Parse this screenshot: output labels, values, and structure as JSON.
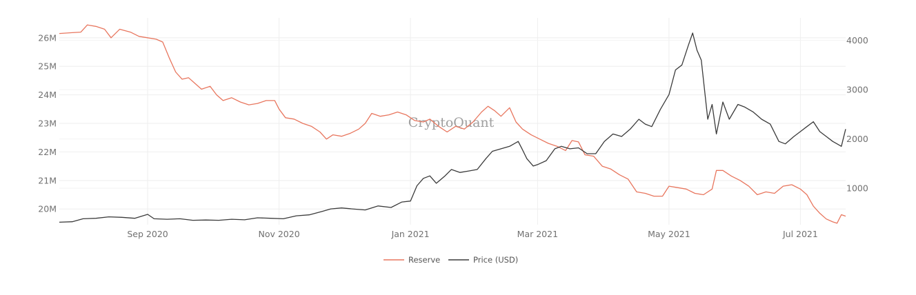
{
  "chart_data": {
    "type": "line",
    "watermark": "CryptoQuant",
    "x_tick_labels": [
      "Sep 2020",
      "Nov 2020",
      "Jan 2021",
      "Mar 2021",
      "May 2021",
      "Jul 2021"
    ],
    "x_tick_dates": [
      "2020-09-01",
      "2020-11-01",
      "2021-01-01",
      "2021-03-01",
      "2021-05-01",
      "2021-07-01"
    ],
    "x_range": [
      "2020-07-22",
      "2021-07-22"
    ],
    "y_left": {
      "tick_labels": [
        "20M",
        "21M",
        "22M",
        "23M",
        "24M",
        "25M",
        "26M"
      ],
      "tick_values": [
        20000000,
        21000000,
        22000000,
        23000000,
        24000000,
        25000000,
        26000000
      ],
      "range": [
        19450000,
        26600000
      ]
    },
    "y_right": {
      "tick_labels": [
        "1000",
        "2000",
        "3000",
        "4000"
      ],
      "tick_values": [
        1000,
        2000,
        3000,
        4000
      ],
      "range": [
        260,
        4400
      ]
    },
    "grid": true,
    "legend_position": "bottom-center",
    "series": [
      {
        "name": "Reserve",
        "axis": "left",
        "color": "#e8765e",
        "points": [
          [
            "2020-07-22",
            26150000
          ],
          [
            "2020-07-28",
            26180000
          ],
          [
            "2020-08-01",
            26200000
          ],
          [
            "2020-08-04",
            26450000
          ],
          [
            "2020-08-08",
            26400000
          ],
          [
            "2020-08-12",
            26300000
          ],
          [
            "2020-08-15",
            26000000
          ],
          [
            "2020-08-19",
            26300000
          ],
          [
            "2020-08-24",
            26200000
          ],
          [
            "2020-08-28",
            26050000
          ],
          [
            "2020-09-01",
            26000000
          ],
          [
            "2020-09-05",
            25950000
          ],
          [
            "2020-09-08",
            25850000
          ],
          [
            "2020-09-11",
            25300000
          ],
          [
            "2020-09-14",
            24800000
          ],
          [
            "2020-09-17",
            24550000
          ],
          [
            "2020-09-20",
            24600000
          ],
          [
            "2020-09-23",
            24400000
          ],
          [
            "2020-09-26",
            24200000
          ],
          [
            "2020-09-30",
            24300000
          ],
          [
            "2020-10-03",
            24000000
          ],
          [
            "2020-10-06",
            23800000
          ],
          [
            "2020-10-10",
            23900000
          ],
          [
            "2020-10-14",
            23750000
          ],
          [
            "2020-10-18",
            23650000
          ],
          [
            "2020-10-22",
            23700000
          ],
          [
            "2020-10-26",
            23800000
          ],
          [
            "2020-10-30",
            23800000
          ],
          [
            "2020-11-01",
            23500000
          ],
          [
            "2020-11-04",
            23200000
          ],
          [
            "2020-11-08",
            23150000
          ],
          [
            "2020-11-12",
            23000000
          ],
          [
            "2020-11-16",
            22900000
          ],
          [
            "2020-11-20",
            22700000
          ],
          [
            "2020-11-23",
            22450000
          ],
          [
            "2020-11-26",
            22600000
          ],
          [
            "2020-11-30",
            22550000
          ],
          [
            "2020-12-04",
            22650000
          ],
          [
            "2020-12-08",
            22800000
          ],
          [
            "2020-12-11",
            23000000
          ],
          [
            "2020-12-14",
            23350000
          ],
          [
            "2020-12-18",
            23250000
          ],
          [
            "2020-12-22",
            23300000
          ],
          [
            "2020-12-26",
            23400000
          ],
          [
            "2020-12-30",
            23300000
          ],
          [
            "2021-01-03",
            23100000
          ],
          [
            "2021-01-07",
            23050000
          ],
          [
            "2021-01-10",
            23150000
          ],
          [
            "2021-01-14",
            22900000
          ],
          [
            "2021-01-18",
            22700000
          ],
          [
            "2021-01-22",
            22900000
          ],
          [
            "2021-01-26",
            22800000
          ],
          [
            "2021-01-30",
            23050000
          ],
          [
            "2021-02-03",
            23400000
          ],
          [
            "2021-02-06",
            23600000
          ],
          [
            "2021-02-09",
            23450000
          ],
          [
            "2021-02-12",
            23250000
          ],
          [
            "2021-02-16",
            23550000
          ],
          [
            "2021-02-19",
            23050000
          ],
          [
            "2021-02-22",
            22800000
          ],
          [
            "2021-02-26",
            22600000
          ],
          [
            "2021-03-02",
            22450000
          ],
          [
            "2021-03-06",
            22300000
          ],
          [
            "2021-03-10",
            22200000
          ],
          [
            "2021-03-14",
            22050000
          ],
          [
            "2021-03-17",
            22400000
          ],
          [
            "2021-03-20",
            22350000
          ],
          [
            "2021-03-23",
            21900000
          ],
          [
            "2021-03-27",
            21850000
          ],
          [
            "2021-03-31",
            21500000
          ],
          [
            "2021-04-04",
            21400000
          ],
          [
            "2021-04-08",
            21200000
          ],
          [
            "2021-04-12",
            21050000
          ],
          [
            "2021-04-16",
            20600000
          ],
          [
            "2021-04-20",
            20550000
          ],
          [
            "2021-04-24",
            20450000
          ],
          [
            "2021-04-28",
            20450000
          ],
          [
            "2021-05-01",
            20800000
          ],
          [
            "2021-05-05",
            20750000
          ],
          [
            "2021-05-09",
            20700000
          ],
          [
            "2021-05-13",
            20550000
          ],
          [
            "2021-05-17",
            20500000
          ],
          [
            "2021-05-21",
            20700000
          ],
          [
            "2021-05-23",
            21350000
          ],
          [
            "2021-05-26",
            21350000
          ],
          [
            "2021-05-30",
            21150000
          ],
          [
            "2021-06-03",
            21000000
          ],
          [
            "2021-06-07",
            20800000
          ],
          [
            "2021-06-11",
            20500000
          ],
          [
            "2021-06-15",
            20600000
          ],
          [
            "2021-06-19",
            20550000
          ],
          [
            "2021-06-23",
            20800000
          ],
          [
            "2021-06-27",
            20850000
          ],
          [
            "2021-07-01",
            20700000
          ],
          [
            "2021-07-04",
            20500000
          ],
          [
            "2021-07-07",
            20100000
          ],
          [
            "2021-07-10",
            19850000
          ],
          [
            "2021-07-13",
            19650000
          ],
          [
            "2021-07-16",
            19550000
          ],
          [
            "2021-07-18",
            19500000
          ],
          [
            "2021-07-20",
            19800000
          ],
          [
            "2021-07-22",
            19750000
          ]
        ]
      },
      {
        "name": "Price (USD)",
        "axis": "right",
        "color": "#3a3a3a",
        "points": [
          [
            "2020-07-22",
            310
          ],
          [
            "2020-07-28",
            320
          ],
          [
            "2020-08-02",
            380
          ],
          [
            "2020-08-08",
            390
          ],
          [
            "2020-08-14",
            420
          ],
          [
            "2020-08-20",
            410
          ],
          [
            "2020-08-26",
            390
          ],
          [
            "2020-09-01",
            470
          ],
          [
            "2020-09-04",
            380
          ],
          [
            "2020-09-10",
            370
          ],
          [
            "2020-09-16",
            380
          ],
          [
            "2020-09-22",
            350
          ],
          [
            "2020-09-28",
            355
          ],
          [
            "2020-10-04",
            350
          ],
          [
            "2020-10-10",
            370
          ],
          [
            "2020-10-16",
            360
          ],
          [
            "2020-10-22",
            400
          ],
          [
            "2020-10-28",
            390
          ],
          [
            "2020-11-03",
            380
          ],
          [
            "2020-11-09",
            440
          ],
          [
            "2020-11-15",
            460
          ],
          [
            "2020-11-21",
            530
          ],
          [
            "2020-11-25",
            580
          ],
          [
            "2020-11-30",
            600
          ],
          [
            "2020-12-05",
            580
          ],
          [
            "2020-12-11",
            560
          ],
          [
            "2020-12-17",
            640
          ],
          [
            "2020-12-23",
            610
          ],
          [
            "2020-12-28",
            720
          ],
          [
            "2021-01-01",
            740
          ],
          [
            "2021-01-04",
            1050
          ],
          [
            "2021-01-07",
            1200
          ],
          [
            "2021-01-10",
            1250
          ],
          [
            "2021-01-13",
            1100
          ],
          [
            "2021-01-17",
            1250
          ],
          [
            "2021-01-20",
            1380
          ],
          [
            "2021-01-24",
            1320
          ],
          [
            "2021-01-28",
            1350
          ],
          [
            "2021-02-01",
            1380
          ],
          [
            "2021-02-05",
            1600
          ],
          [
            "2021-02-08",
            1750
          ],
          [
            "2021-02-12",
            1800
          ],
          [
            "2021-02-16",
            1850
          ],
          [
            "2021-02-20",
            1950
          ],
          [
            "2021-02-22",
            1780
          ],
          [
            "2021-02-24",
            1600
          ],
          [
            "2021-02-27",
            1450
          ],
          [
            "2021-03-01",
            1480
          ],
          [
            "2021-03-05",
            1560
          ],
          [
            "2021-03-09",
            1800
          ],
          [
            "2021-03-12",
            1850
          ],
          [
            "2021-03-16",
            1800
          ],
          [
            "2021-03-20",
            1820
          ],
          [
            "2021-03-24",
            1700
          ],
          [
            "2021-03-28",
            1700
          ],
          [
            "2021-04-01",
            1950
          ],
          [
            "2021-04-05",
            2100
          ],
          [
            "2021-04-09",
            2050
          ],
          [
            "2021-04-13",
            2200
          ],
          [
            "2021-04-17",
            2400
          ],
          [
            "2021-04-20",
            2300
          ],
          [
            "2021-04-23",
            2250
          ],
          [
            "2021-04-27",
            2600
          ],
          [
            "2021-05-01",
            2900
          ],
          [
            "2021-05-04",
            3400
          ],
          [
            "2021-05-07",
            3500
          ],
          [
            "2021-05-10",
            3900
          ],
          [
            "2021-05-12",
            4150
          ],
          [
            "2021-05-14",
            3800
          ],
          [
            "2021-05-16",
            3600
          ],
          [
            "2021-05-19",
            2400
          ],
          [
            "2021-05-21",
            2700
          ],
          [
            "2021-05-23",
            2100
          ],
          [
            "2021-05-26",
            2750
          ],
          [
            "2021-05-29",
            2400
          ],
          [
            "2021-06-02",
            2700
          ],
          [
            "2021-06-05",
            2650
          ],
          [
            "2021-06-09",
            2550
          ],
          [
            "2021-06-13",
            2400
          ],
          [
            "2021-06-17",
            2300
          ],
          [
            "2021-06-21",
            1950
          ],
          [
            "2021-06-24",
            1900
          ],
          [
            "2021-06-28",
            2050
          ],
          [
            "2021-07-01",
            2150
          ],
          [
            "2021-07-04",
            2250
          ],
          [
            "2021-07-07",
            2350
          ],
          [
            "2021-07-10",
            2150
          ],
          [
            "2021-07-13",
            2050
          ],
          [
            "2021-07-16",
            1950
          ],
          [
            "2021-07-18",
            1900
          ],
          [
            "2021-07-20",
            1850
          ],
          [
            "2021-07-22",
            2200
          ]
        ]
      }
    ]
  }
}
